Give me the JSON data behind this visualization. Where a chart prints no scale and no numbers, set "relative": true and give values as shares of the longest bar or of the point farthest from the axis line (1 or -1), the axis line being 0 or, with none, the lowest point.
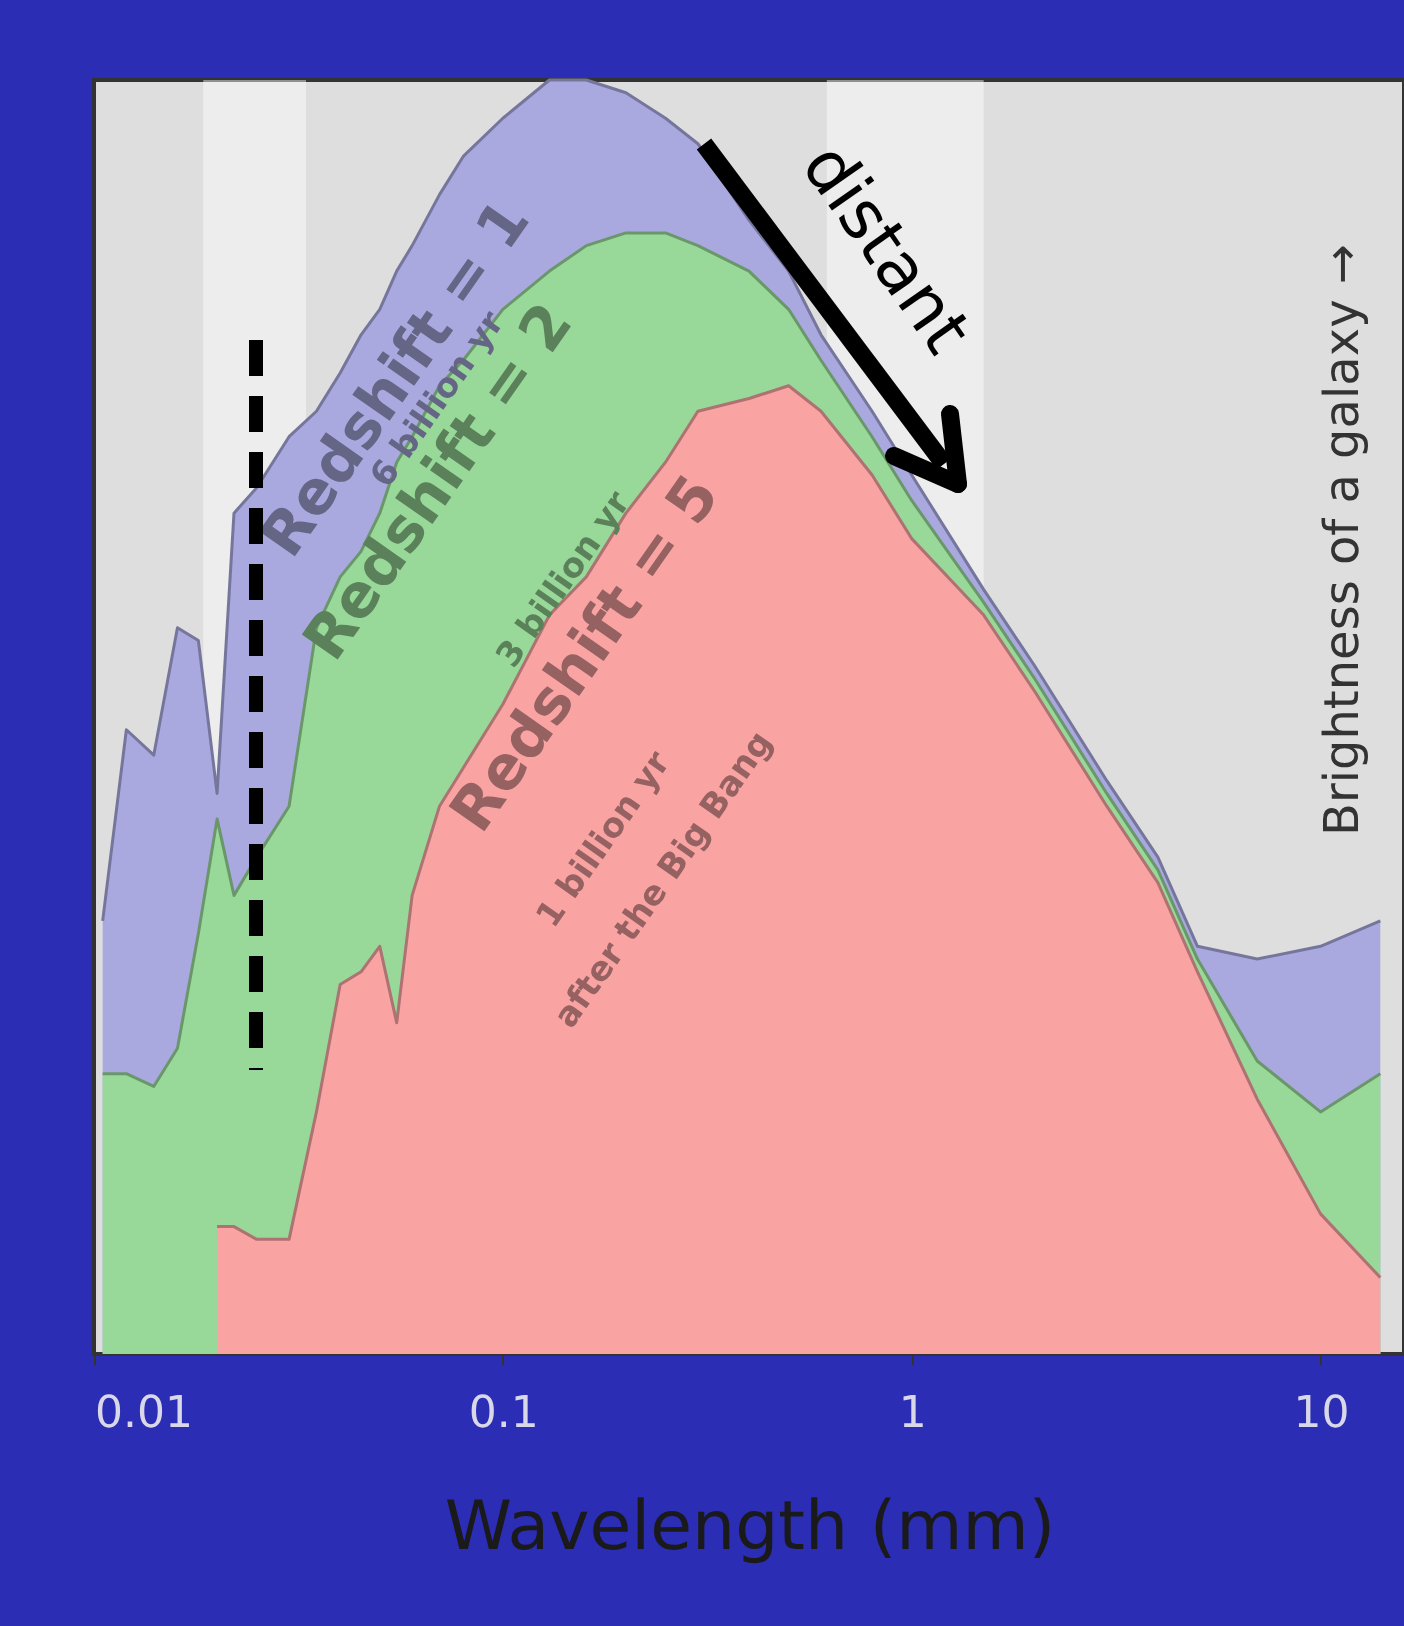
{
  "chart_data": {
    "type": "area",
    "relative": true,
    "xlabel": "Wavelength (mm)",
    "ylabel": "Brightness of  a galaxy →",
    "log": "x",
    "xlim": [
      0.01,
      16
    ],
    "xticks": [
      0.01,
      0.1,
      1,
      10
    ],
    "grid": false,
    "marker": "none",
    "x": [
      0.0105,
      0.012,
      0.014,
      0.016,
      0.018,
      0.02,
      0.022,
      0.025,
      0.03,
      0.035,
      0.04,
      0.045,
      0.05,
      0.055,
      0.06,
      0.07,
      0.08,
      0.1,
      0.13,
      0.16,
      0.2,
      0.25,
      0.3,
      0.4,
      0.5,
      0.6,
      0.8,
      1,
      1.5,
      2,
      3,
      4,
      5,
      7,
      10,
      14
    ],
    "series": [
      {
        "name": "Redshift = 1",
        "color": "#a9a9e0",
        "values": [
          0.34,
          0.49,
          0.47,
          0.57,
          0.56,
          0.44,
          0.66,
          0.68,
          0.72,
          0.74,
          0.77,
          0.8,
          0.82,
          0.85,
          0.87,
          0.91,
          0.94,
          0.97,
          1.0,
          1.0,
          0.99,
          0.97,
          0.95,
          0.89,
          0.85,
          0.8,
          0.74,
          0.69,
          0.6,
          0.54,
          0.45,
          0.39,
          0.32,
          0.31,
          0.32,
          0.34
        ]
      },
      {
        "name": "Redshift = 2",
        "color": "#98d898",
        "values": [
          0.22,
          0.22,
          0.21,
          0.24,
          0.33,
          0.42,
          0.36,
          0.39,
          0.43,
          0.57,
          0.61,
          0.63,
          0.66,
          0.7,
          0.72,
          0.76,
          0.78,
          0.82,
          0.85,
          0.87,
          0.88,
          0.88,
          0.87,
          0.85,
          0.82,
          0.78,
          0.72,
          0.67,
          0.59,
          0.53,
          0.44,
          0.38,
          0.31,
          0.23,
          0.19,
          0.22
        ]
      },
      {
        "name": "Redshift = 5",
        "color": "#f9a3a3",
        "values": [
          null,
          null,
          null,
          null,
          null,
          0.1,
          0.1,
          0.09,
          0.09,
          0.19,
          0.29,
          0.3,
          0.32,
          0.26,
          0.36,
          0.43,
          0.46,
          0.51,
          0.58,
          0.61,
          0.66,
          0.7,
          0.74,
          0.75,
          0.76,
          0.74,
          0.69,
          0.64,
          0.58,
          0.52,
          0.43,
          0.37,
          0.3,
          0.2,
          0.11,
          0.06
        ]
      }
    ],
    "bands": [
      {
        "axis": "x",
        "from": 0.0185,
        "to": 0.033,
        "color": "#ffffff"
      },
      {
        "axis": "x",
        "from": 0.62,
        "to": 1.5,
        "color": "#ffffff"
      }
    ],
    "annotations": [
      "6 billion yr",
      "3 billion yr",
      "1 billion yr",
      "after the Big Bang",
      "distant"
    ]
  }
}
